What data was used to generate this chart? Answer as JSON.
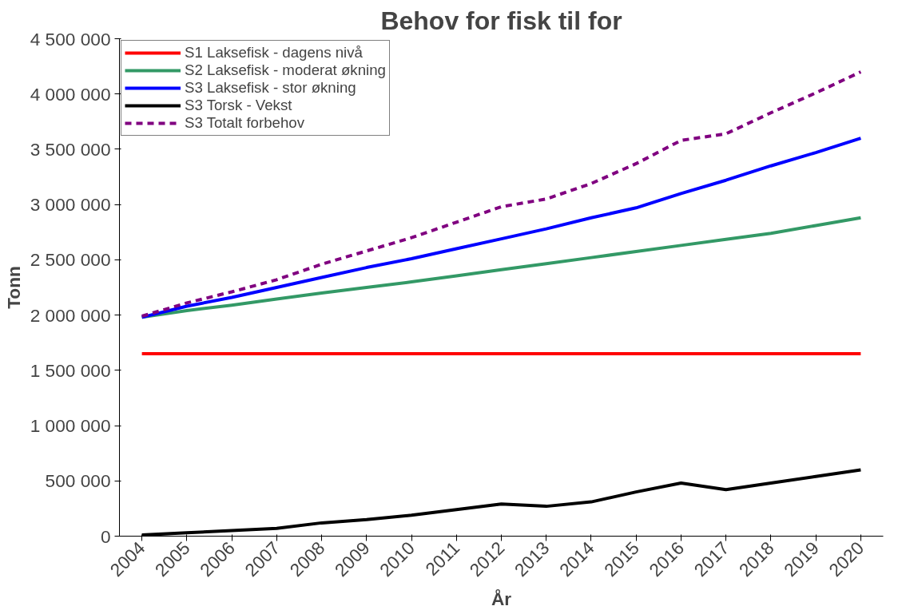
{
  "chart_data": {
    "type": "line",
    "title": "Behov for fisk til for",
    "xlabel": "År",
    "ylabel": "Tonn",
    "categories": [
      "2004",
      "2005",
      "2006",
      "2007",
      "2008",
      "2009",
      "2010",
      "2011",
      "2012",
      "2013",
      "2014",
      "2015",
      "2016",
      "2017",
      "2018",
      "2019",
      "2020"
    ],
    "ylim": [
      0,
      4500000
    ],
    "yticks": [
      {
        "value": 0,
        "label": "0"
      },
      {
        "value": 500000,
        "label": "500 000"
      },
      {
        "value": 1000000,
        "label": "1 000 000"
      },
      {
        "value": 1500000,
        "label": "1 500 000"
      },
      {
        "value": 2000000,
        "label": "2 000 000"
      },
      {
        "value": 2500000,
        "label": "2 500 000"
      },
      {
        "value": 3000000,
        "label": "3 000 000"
      },
      {
        "value": 3500000,
        "label": "3 500 000"
      },
      {
        "value": 4000000,
        "label": "4 000 000"
      },
      {
        "value": 4500000,
        "label": "4 500 000"
      }
    ],
    "grid": false,
    "legend": "top left",
    "marker": "none",
    "series": [
      {
        "name": "S1 Laksefisk - dagens nivå",
        "color": "#ff0000",
        "values": [
          1650000,
          1650000,
          1650000,
          1650000,
          1650000,
          1650000,
          1650000,
          1650000,
          1650000,
          1650000,
          1650000,
          1650000,
          1650000,
          1650000,
          1650000,
          1650000,
          1650000
        ]
      },
      {
        "name": "S2 Laksefisk - moderat økning",
        "color": "#339966",
        "values": [
          1980000,
          2040000,
          2090000,
          2145000,
          2200000,
          2250000,
          2300000,
          2355000,
          2410000,
          2465000,
          2520000,
          2575000,
          2630000,
          2685000,
          2740000,
          2810000,
          2880000
        ]
      },
      {
        "name": "S3 Laksefisk - stor økning",
        "color": "#0000ff",
        "values": [
          1980000,
          2080000,
          2160000,
          2250000,
          2340000,
          2430000,
          2510000,
          2600000,
          2690000,
          2780000,
          2880000,
          2970000,
          3100000,
          3220000,
          3350000,
          3470000,
          3600000
        ]
      },
      {
        "name": "S3 Torsk - Vekst",
        "color": "#000000",
        "values": [
          10000,
          30000,
          50000,
          70000,
          120000,
          150000,
          190000,
          240000,
          290000,
          270000,
          310000,
          400000,
          480000,
          420000,
          480000,
          540000,
          600000
        ]
      },
      {
        "name": "S3 Totalt forbehov",
        "color": "#800080",
        "line_style": "dashed",
        "values": [
          1990000,
          2110000,
          2210000,
          2320000,
          2460000,
          2580000,
          2700000,
          2840000,
          2980000,
          3050000,
          3190000,
          3370000,
          3580000,
          3640000,
          3830000,
          4010000,
          4200000
        ]
      }
    ]
  }
}
